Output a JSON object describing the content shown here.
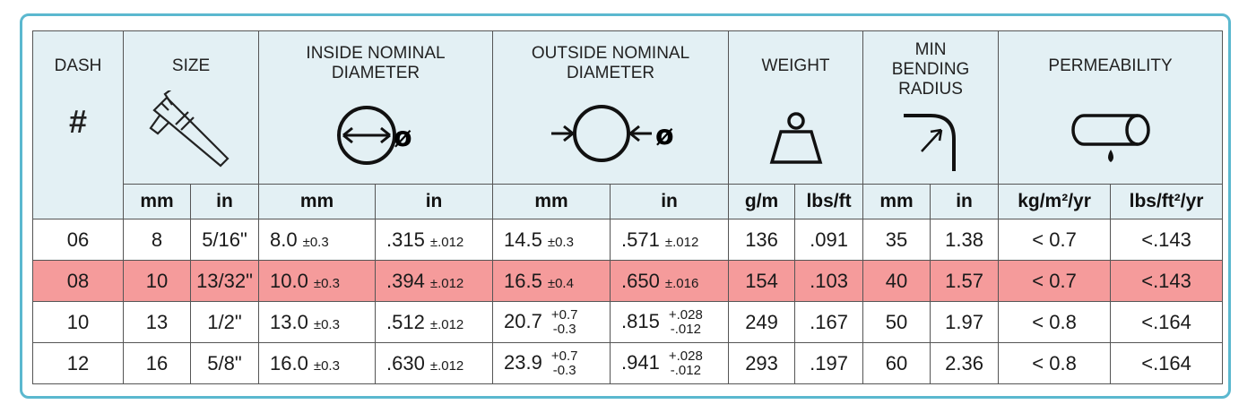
{
  "header": {
    "dash": "DASH",
    "dash_symbol": "#",
    "size": "SIZE",
    "inside": "INSIDE NOMINAL DIAMETER",
    "outside": "OUTSIDE NOMINAL DIAMETER",
    "weight": "WEIGHT",
    "bend": "MIN BENDING RADIUS",
    "perm": "PERMEABILITY",
    "diameter_symbol": "ø"
  },
  "units": [
    "mm",
    "in",
    "mm",
    "in",
    "mm",
    "in",
    "g/m",
    "lbs/ft",
    "mm",
    "in",
    "kg/m²/yr",
    "lbs/ft²/yr"
  ],
  "rows": [
    {
      "dash": "06",
      "mm": "8",
      "in": "5/16\"",
      "id_mm": "8.0",
      "id_mm_tol": "±0.3",
      "id_in": ".315",
      "id_in_tol": "±.012",
      "od_mm": "14.5",
      "od_mm_tol": "±0.3",
      "od_in": ".571",
      "od_in_tol": "±.012",
      "gm": "136",
      "lbsft": ".091",
      "br_mm": "35",
      "br_in": "1.38",
      "kg": "< 0.7",
      "lbs": "<.143"
    },
    {
      "dash": "08",
      "mm": "10",
      "in": "13/32\"",
      "id_mm": "10.0",
      "id_mm_tol": "±0.3",
      "id_in": ".394",
      "id_in_tol": "±.012",
      "od_mm": "16.5",
      "od_mm_tol": "±0.4",
      "od_in": ".650",
      "od_in_tol": "±.016",
      "gm": "154",
      "lbsft": ".103",
      "br_mm": "40",
      "br_in": "1.57",
      "kg": "< 0.7",
      "lbs": "<.143"
    },
    {
      "dash": "10",
      "mm": "13",
      "in": "1/2\"",
      "id_mm": "13.0",
      "id_mm_tol": "±0.3",
      "id_in": ".512",
      "id_in_tol": "±.012",
      "od_mm": "20.7",
      "od_mm_tol_plus": "+0.7",
      "od_mm_tol_minus": "-0.3",
      "od_in": ".815",
      "od_in_tol_plus": "+.028",
      "od_in_tol_minus": "-.012",
      "gm": "249",
      "lbsft": ".167",
      "br_mm": "50",
      "br_in": "1.97",
      "kg": "< 0.8",
      "lbs": "<.164"
    },
    {
      "dash": "12",
      "mm": "16",
      "in": "5/8\"",
      "id_mm": "16.0",
      "id_mm_tol": "±0.3",
      "id_in": ".630",
      "id_in_tol": "±.012",
      "od_mm": "23.9",
      "od_mm_tol_plus": "+0.7",
      "od_mm_tol_minus": "-0.3",
      "od_in": ".941",
      "od_in_tol_plus": "+.028",
      "od_in_tol_minus": "-.012",
      "gm": "293",
      "lbsft": ".197",
      "br_mm": "60",
      "br_in": "2.36",
      "kg": "< 0.8",
      "lbs": "<.164"
    }
  ],
  "highlight_color": "#f59b9b",
  "header_bg": "#e3f0f4",
  "frame_color": "#5bb8cf"
}
